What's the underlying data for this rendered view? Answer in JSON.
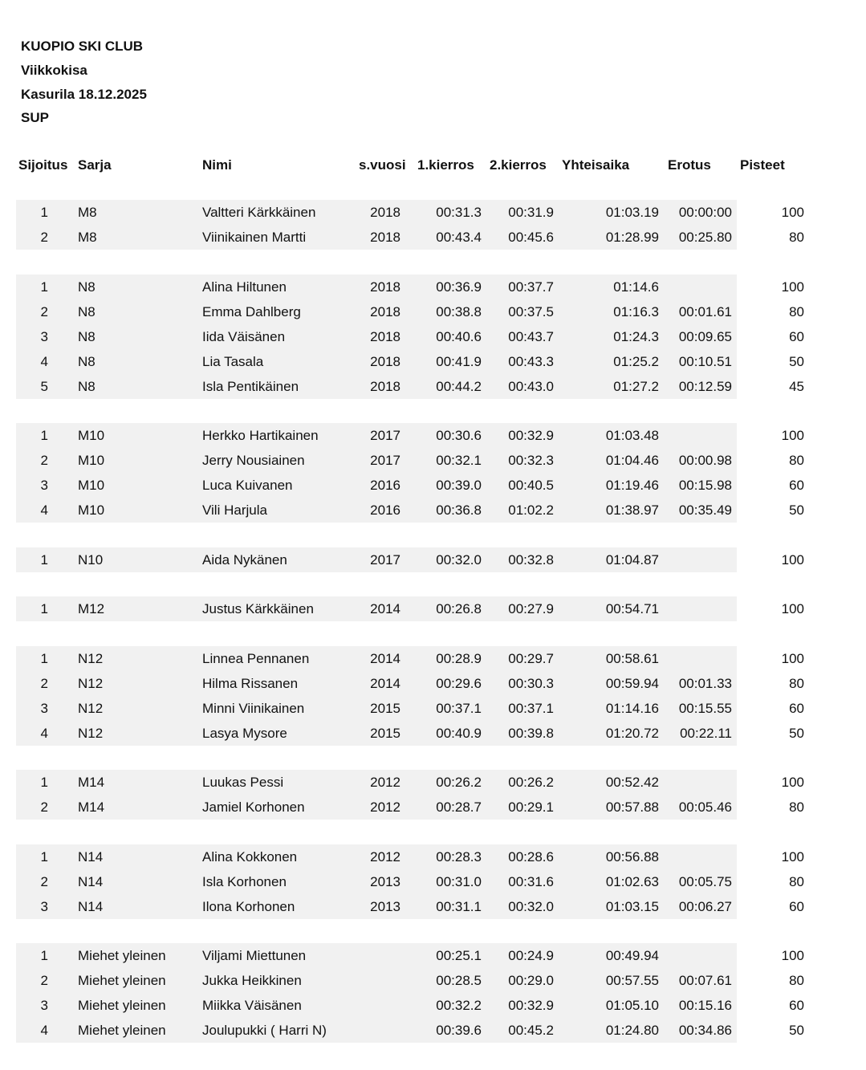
{
  "header": {
    "club": "KUOPIO SKI CLUB",
    "event": "Viikkokisa",
    "venue_date": "Kasurila 18.12.2025",
    "discipline": "SUP"
  },
  "columns": [
    "Sijoitus",
    "Sarja",
    "Nimi",
    "s.vuosi",
    "1.kierros",
    "2.kierros",
    "Yhteisaika",
    "Erotus",
    "Pisteet"
  ],
  "groups": [
    {
      "rows": [
        [
          "1",
          "M8",
          "Valtteri Kärkkäinen",
          "2018",
          "00:31.3",
          "00:31.9",
          "01:03.19",
          "00:00:00",
          "100"
        ],
        [
          "2",
          "M8",
          "Viinikainen Martti",
          "2018",
          "00:43.4",
          "00:45.6",
          "01:28.99",
          "00:25.80",
          "80"
        ]
      ]
    },
    {
      "rows": [
        [
          "1",
          "N8",
          "Alina Hiltunen",
          "2018",
          "00:36.9",
          "00:37.7",
          "01:14.6",
          "",
          "100"
        ],
        [
          "2",
          "N8",
          "Emma Dahlberg",
          "2018",
          "00:38.8",
          "00:37.5",
          "01:16.3",
          "00:01.61",
          "80"
        ],
        [
          "3",
          "N8",
          "Iida Väisänen",
          "2018",
          "00:40.6",
          "00:43.7",
          "01:24.3",
          "00:09.65",
          "60"
        ],
        [
          "4",
          "N8",
          "Lia Tasala",
          "2018",
          "00:41.9",
          "00:43.3",
          "01:25.2",
          "00:10.51",
          "50"
        ],
        [
          "5",
          "N8",
          "Isla Pentikäinen",
          "2018",
          "00:44.2",
          "00:43.0",
          "01:27.2",
          "00:12.59",
          "45"
        ]
      ]
    },
    {
      "rows": [
        [
          "1",
          "M10",
          "Herkko Hartikainen",
          "2017",
          "00:30.6",
          "00:32.9",
          "01:03.48",
          "",
          "100"
        ],
        [
          "2",
          "M10",
          "Jerry Nousiainen",
          "2017",
          "00:32.1",
          "00:32.3",
          "01:04.46",
          "00:00.98",
          "80"
        ],
        [
          "3",
          "M10",
          "Luca Kuivanen",
          "2016",
          "00:39.0",
          "00:40.5",
          "01:19.46",
          "00:15.98",
          "60"
        ],
        [
          "4",
          "M10",
          "Vili Harjula",
          "2016",
          "00:36.8",
          "01:02.2",
          "01:38.97",
          "00:35.49",
          "50"
        ]
      ]
    },
    {
      "rows": [
        [
          "1",
          "N10",
          "Aida Nykänen",
          "2017",
          "00:32.0",
          "00:32.8",
          "01:04.87",
          "",
          "100"
        ]
      ]
    },
    {
      "rows": [
        [
          "1",
          "M12",
          "Justus Kärkkäinen",
          "2014",
          "00:26.8",
          "00:27.9",
          "00:54.71",
          "",
          "100"
        ]
      ]
    },
    {
      "rows": [
        [
          "1",
          "N12",
          "Linnea Pennanen",
          "2014",
          "00:28.9",
          "00:29.7",
          "00:58.61",
          "",
          "100"
        ],
        [
          "2",
          "N12",
          "Hilma Rissanen",
          "2014",
          "00:29.6",
          "00:30.3",
          "00:59.94",
          "00:01.33",
          "80"
        ],
        [
          "3",
          "N12",
          "Minni Viinikainen",
          "2015",
          "00:37.1",
          "00:37.1",
          "01:14.16",
          "00:15.55",
          "60"
        ],
        [
          "4",
          "N12",
          "Lasya Mysore",
          "2015",
          "00:40.9",
          "00:39.8",
          "01:20.72",
          "00:22.11",
          "50"
        ]
      ]
    },
    {
      "rows": [
        [
          "1",
          "M14",
          "Luukas Pessi",
          "2012",
          "00:26.2",
          "00:26.2",
          "00:52.42",
          "",
          "100"
        ],
        [
          "2",
          "M14",
          "Jamiel Korhonen",
          "2012",
          "00:28.7",
          "00:29.1",
          "00:57.88",
          "00:05.46",
          "80"
        ]
      ]
    },
    {
      "rows": [
        [
          "1",
          "N14",
          "Alina Kokkonen",
          "2012",
          "00:28.3",
          "00:28.6",
          "00:56.88",
          "",
          "100"
        ],
        [
          "2",
          "N14",
          "Isla Korhonen",
          "2013",
          "00:31.0",
          "00:31.6",
          "01:02.63",
          "00:05.75",
          "80"
        ],
        [
          "3",
          "N14",
          "Ilona Korhonen",
          "2013",
          "00:31.1",
          "00:32.0",
          "01:03.15",
          "00:06.27",
          "60"
        ]
      ]
    },
    {
      "rows": [
        [
          "1",
          "Miehet yleinen",
          "Viljami Miettunen",
          "",
          "00:25.1",
          "00:24.9",
          "00:49.94",
          "",
          "100"
        ],
        [
          "2",
          "Miehet yleinen",
          "Jukka Heikkinen",
          "",
          "00:28.5",
          "00:29.0",
          "00:57.55",
          "00:07.61",
          "80"
        ],
        [
          "3",
          "Miehet yleinen",
          "Miikka Väisänen",
          "",
          "00:32.2",
          "00:32.9",
          "01:05.10",
          "00:15.16",
          "60"
        ],
        [
          "4",
          "Miehet yleinen",
          "Joulupukki ( Harri N)",
          "",
          "00:39.6",
          "00:45.2",
          "01:24.80",
          "00:34.86",
          "50"
        ]
      ]
    }
  ]
}
